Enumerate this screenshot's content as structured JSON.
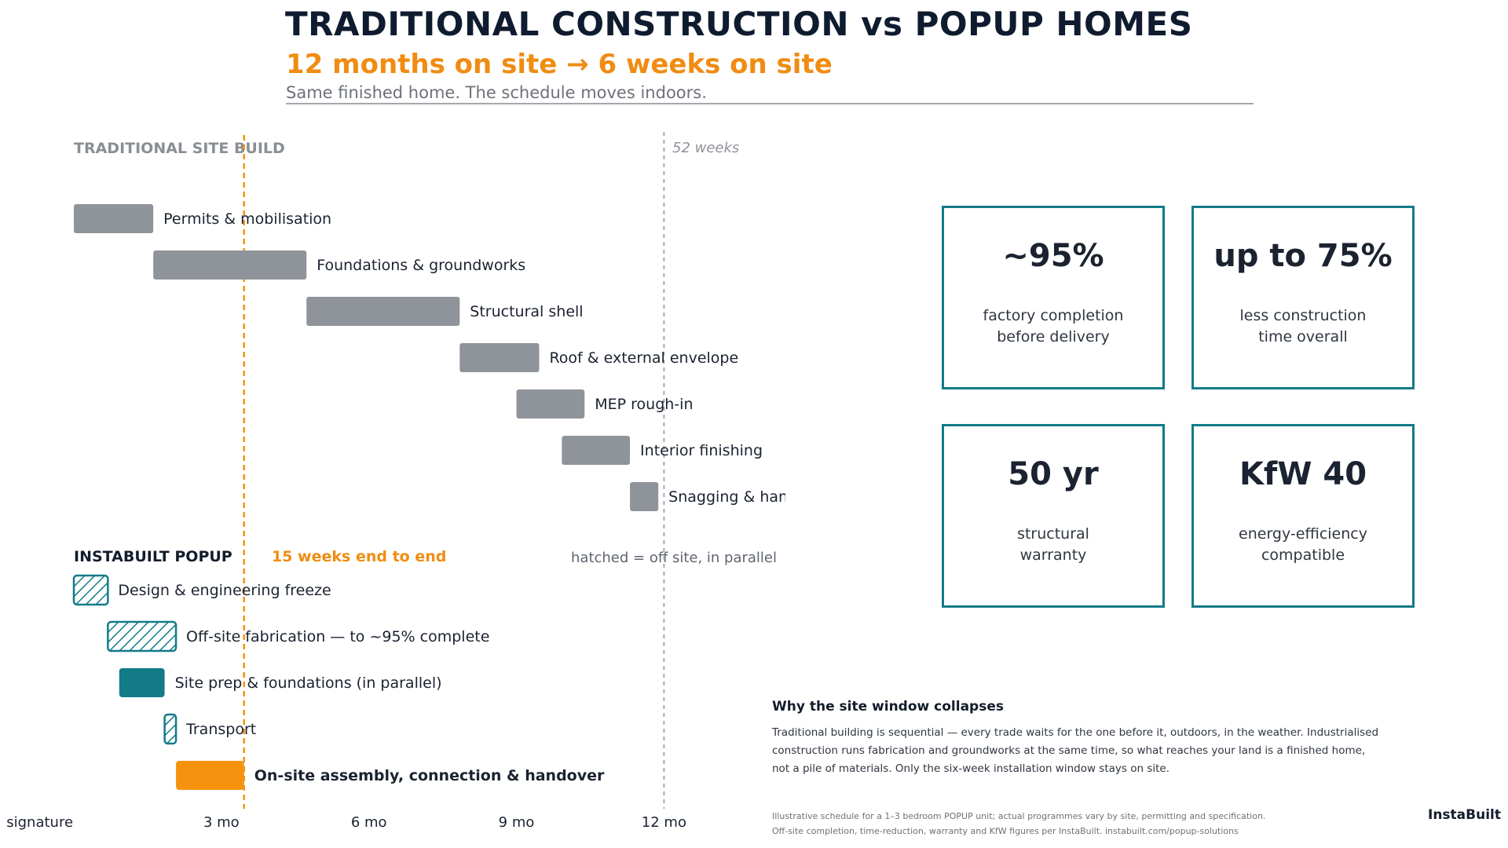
{
  "header": {
    "title": "TRADITIONAL CONSTRUCTION  vs  POPUP HOMES",
    "subtitle": "12 months on site  →  6 weeks on site",
    "tagline": "Same finished home. The schedule moves indoors."
  },
  "traditional": {
    "label": "TRADITIONAL SITE BUILD",
    "end_label": "52 weeks",
    "tasks": [
      {
        "label": "Permits & mobilisation",
        "start_weeks": 0,
        "end_weeks": 7
      },
      {
        "label": "Foundations & groundworks",
        "start_weeks": 7,
        "end_weeks": 20.5
      },
      {
        "label": "Structural shell",
        "start_weeks": 20.5,
        "end_weeks": 34
      },
      {
        "label": "Roof & external envelope",
        "start_weeks": 34,
        "end_weeks": 41
      },
      {
        "label": "MEP rough-in",
        "start_weeks": 39,
        "end_weeks": 45
      },
      {
        "label": "Interior finishing",
        "start_weeks": 43,
        "end_weeks": 49
      },
      {
        "label": "Snagging & handover",
        "start_weeks": 49,
        "end_weeks": 51.5
      }
    ]
  },
  "popup": {
    "label": "INSTABUILT POPUP",
    "duration_label": "15 weeks end to end",
    "legend": "hatched = off site, in parallel",
    "tasks": [
      {
        "label": "Design & engineering freeze",
        "start_weeks": 0,
        "end_weeks": 3,
        "style": "hatched",
        "bold": false
      },
      {
        "label": "Off-site fabrication — to ~95% complete",
        "start_weeks": 3,
        "end_weeks": 9,
        "style": "hatched",
        "bold": false
      },
      {
        "label": "Site prep & foundations  (in parallel)",
        "start_weeks": 4,
        "end_weeks": 8,
        "style": "solid-teal",
        "bold": false
      },
      {
        "label": "Transport",
        "start_weeks": 8,
        "end_weeks": 9,
        "style": "hatched",
        "bold": false
      },
      {
        "label": "On-site assembly, connection & handover",
        "start_weeks": 9,
        "end_weeks": 15,
        "style": "solid-orange",
        "bold": true
      }
    ]
  },
  "axis": {
    "ticks": [
      {
        "label": "signature",
        "week": -3
      },
      {
        "label": "3 mo",
        "week": 13
      },
      {
        "label": "6 mo",
        "week": 26
      },
      {
        "label": "9 mo",
        "week": 39
      },
      {
        "label": "12 mo",
        "week": 52
      }
    ],
    "popup_end_week": 15,
    "traditional_end_week": 52
  },
  "stats": [
    {
      "value": "~95%",
      "desc": "factory completion\nbefore delivery",
      "style": "teal"
    },
    {
      "value": "up to 75%",
      "desc": "less construction\ntime overall",
      "style": "orange-b"
    },
    {
      "value": "50 yr",
      "desc": "structural\nwarranty",
      "style": "navy"
    },
    {
      "value": "KfW 40",
      "desc": "energy-efficiency\ncompatible",
      "style": "teal"
    }
  ],
  "why": {
    "title": "Why the site window collapses",
    "body": "Traditional building is sequential — every trade waits for the one before it, outdoors, in the weather. Industrialised construction runs fabrication and groundworks at the same time, so what reaches your land is a finished home, not a pile of materials. Only the six-week installation window stays on site."
  },
  "footnote": {
    "line1": "Illustrative schedule for a 1–3 bedroom POPUP unit; actual programmes vary by site, permitting and specification.",
    "line2": "Off-site completion, time-reduction, warranty and KfW figures per InstaBuilt.    instabuilt.com/popup-solutions"
  },
  "brand": "InstaBuilt",
  "colors": {
    "grey_bar": "#8f939a",
    "teal": "#137b88",
    "orange": "#f5930f",
    "navy": "#131c2b"
  }
}
